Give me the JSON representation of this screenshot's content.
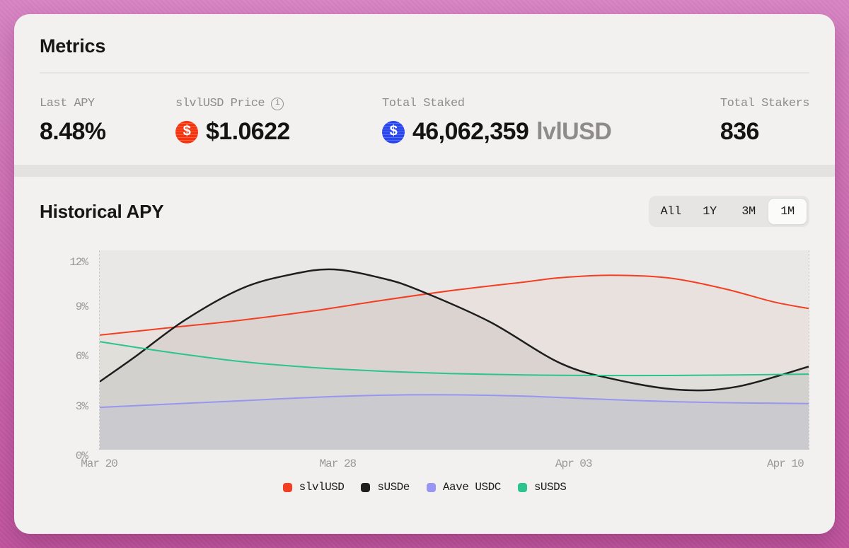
{
  "page": {
    "background_top": "#d784c3",
    "background_bottom": "#c0549e",
    "card_background": "#f2f1f0"
  },
  "metrics": {
    "title": "Metrics",
    "stats": {
      "last_apy": {
        "label": "Last APY",
        "value": "8.48%"
      },
      "price": {
        "label": "slvlUSD Price",
        "value": "$1.0622"
      },
      "staked": {
        "label": "Total Staked",
        "value": "46,062,359",
        "unit": "lvlUSD"
      },
      "stakers": {
        "label": "Total Stakers",
        "value": "836"
      }
    }
  },
  "icons": {
    "info_glyph": "i",
    "coin_glyph": "$",
    "red_coin": "#f5330f",
    "blue_coin": "#2946ee"
  },
  "chart_section": {
    "title": "Historical APY",
    "range_buttons": [
      "All",
      "1Y",
      "3M",
      "1M"
    ],
    "selected_range": "1M"
  },
  "chart_data": {
    "type": "area",
    "title": "Historical APY",
    "plot_bg": "#e9e8e7",
    "grid": false,
    "legend_position": "bottom",
    "ylim": [
      0,
      12
    ],
    "y_unit": "%",
    "y_ticks": [
      "0%",
      "3%",
      "6%",
      "9%",
      "12%"
    ],
    "x_tick_labels": [
      "Mar 20",
      "Mar 28",
      "Apr 03",
      "Apr 10"
    ],
    "x_tick_positions": [
      0,
      0.336,
      0.668,
      0.966
    ],
    "series": [
      {
        "name": "slvlUSD",
        "color": "#f43e22",
        "fill_opacity": 0.045,
        "stroke_width": 2,
        "x": [
          0,
          0.1,
          0.2,
          0.3,
          0.4,
          0.5,
          0.6,
          0.65,
          0.72,
          0.8,
          0.88,
          0.95,
          1
        ],
        "values": [
          6.9,
          7.35,
          7.8,
          8.35,
          9.0,
          9.6,
          10.1,
          10.35,
          10.5,
          10.35,
          9.7,
          8.9,
          8.5
        ]
      },
      {
        "name": "sUSDe",
        "color": "#1e1e1e",
        "fill_opacity": 0.07,
        "stroke_width": 2.5,
        "x": [
          0,
          0.05,
          0.12,
          0.2,
          0.27,
          0.33,
          0.4,
          0.45,
          0.55,
          0.65,
          0.73,
          0.82,
          0.9,
          1
        ],
        "values": [
          4.1,
          5.6,
          7.8,
          9.7,
          10.55,
          10.85,
          10.3,
          9.6,
          7.7,
          5.2,
          4.2,
          3.6,
          3.8,
          5.0
        ]
      },
      {
        "name": "Aave USDC",
        "color": "#9896f0",
        "fill_opacity": 0.11,
        "stroke_width": 2,
        "x": [
          0,
          0.1,
          0.2,
          0.3,
          0.4,
          0.5,
          0.6,
          0.7,
          0.8,
          0.9,
          1
        ],
        "values": [
          2.55,
          2.75,
          2.95,
          3.15,
          3.28,
          3.3,
          3.22,
          3.05,
          2.9,
          2.82,
          2.78
        ]
      },
      {
        "name": "sUSDS",
        "color": "#2bc48e",
        "fill_opacity": 0.045,
        "stroke_width": 2,
        "x": [
          0,
          0.1,
          0.2,
          0.3,
          0.4,
          0.5,
          0.6,
          0.7,
          0.8,
          0.9,
          1
        ],
        "values": [
          6.5,
          5.85,
          5.3,
          4.95,
          4.72,
          4.58,
          4.5,
          4.47,
          4.47,
          4.5,
          4.55
        ]
      }
    ]
  }
}
